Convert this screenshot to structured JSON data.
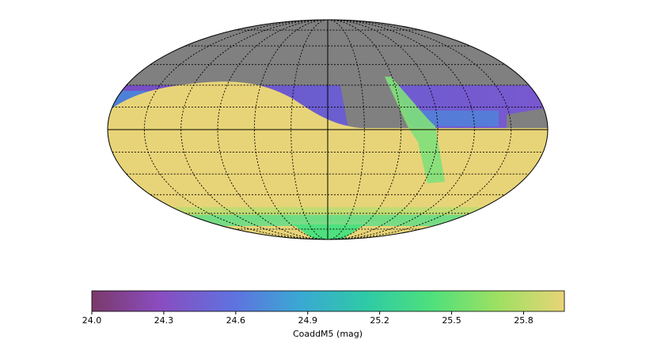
{
  "colorbar": {
    "label": "CoaddM5 (mag)",
    "lim": [
      24.0,
      25.97
    ],
    "ticks": [
      {
        "value": 24.0,
        "label": "24.0"
      },
      24.3,
      24.6,
      24.9,
      25.2,
      25.5,
      25.8
    ]
  }
}
